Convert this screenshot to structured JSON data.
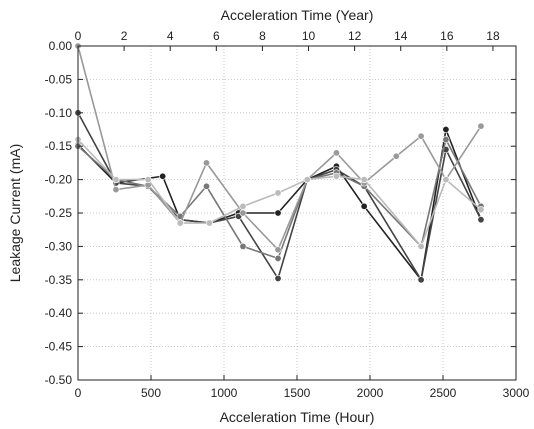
{
  "chart_data": {
    "type": "line",
    "title": "",
    "xlabel": "Acceleration Time (Hour)",
    "x2label": "Acceleration Time (Year)",
    "ylabel": "Leakage Current (mA)",
    "xlim": [
      0,
      3000
    ],
    "x2lim": [
      0,
      19
    ],
    "ylim": [
      -0.5,
      0.0
    ],
    "x_ticks": [
      "0",
      "500",
      "1000",
      "1500",
      "2000",
      "2500",
      "3000"
    ],
    "x2_ticks": [
      "0",
      "2",
      "4",
      "6",
      "8",
      "10",
      "12",
      "14",
      "16",
      "18"
    ],
    "y_ticks": [
      "0.00",
      "-0.05",
      "-0.10",
      "-0.15",
      "-0.20",
      "-0.25",
      "-0.30",
      "-0.35",
      "-0.40",
      "-0.45",
      "-0.50"
    ],
    "grid": true,
    "series": [
      {
        "color": "#222222",
        "marker": "circle",
        "x": [
          0,
          260,
          580,
          700,
          900,
          1100,
          1370,
          1570,
          1770,
          1960,
          2350,
          2520,
          2760
        ],
        "y": [
          -0.148,
          -0.205,
          -0.195,
          -0.26,
          -0.265,
          -0.25,
          -0.25,
          -0.2,
          -0.18,
          -0.24,
          -0.35,
          -0.125,
          -0.26
        ]
      },
      {
        "color": "#444444",
        "marker": "circle",
        "x": [
          0,
          260,
          480,
          700,
          900,
          1100,
          1370,
          1570,
          1770,
          1960,
          2350,
          2520,
          2760
        ],
        "y": [
          -0.1,
          -0.205,
          -0.21,
          -0.26,
          -0.265,
          -0.255,
          -0.348,
          -0.2,
          -0.185,
          -0.21,
          -0.35,
          -0.155,
          -0.26
        ]
      },
      {
        "color": "#777777",
        "marker": "circle",
        "x": [
          0,
          260,
          480,
          700,
          880,
          1130,
          1370,
          1570,
          1770,
          1960,
          2350,
          2520,
          2760
        ],
        "y": [
          -0.15,
          -0.2,
          -0.21,
          -0.255,
          -0.21,
          -0.3,
          -0.318,
          -0.2,
          -0.19,
          -0.21,
          -0.3,
          -0.14,
          -0.24
        ]
      },
      {
        "color": "#999999",
        "marker": "circle",
        "x": [
          0,
          260,
          480,
          700,
          880,
          1130,
          1370,
          1570,
          1770,
          1960,
          2180,
          2350,
          2520,
          2760
        ],
        "y": [
          0.0,
          -0.215,
          -0.208,
          -0.265,
          -0.175,
          -0.25,
          -0.305,
          -0.2,
          -0.16,
          -0.205,
          -0.165,
          -0.135,
          -0.2,
          -0.12
        ]
      },
      {
        "color": "#bbbbbb",
        "marker": "circle",
        "x": [
          0,
          260,
          480,
          700,
          900,
          1130,
          1370,
          1570,
          1770,
          1960,
          2350,
          2520,
          2760
        ],
        "y": [
          -0.14,
          -0.2,
          -0.2,
          -0.265,
          -0.265,
          -0.24,
          -0.22,
          -0.2,
          -0.195,
          -0.2,
          -0.3,
          -0.2,
          -0.245
        ]
      }
    ]
  }
}
